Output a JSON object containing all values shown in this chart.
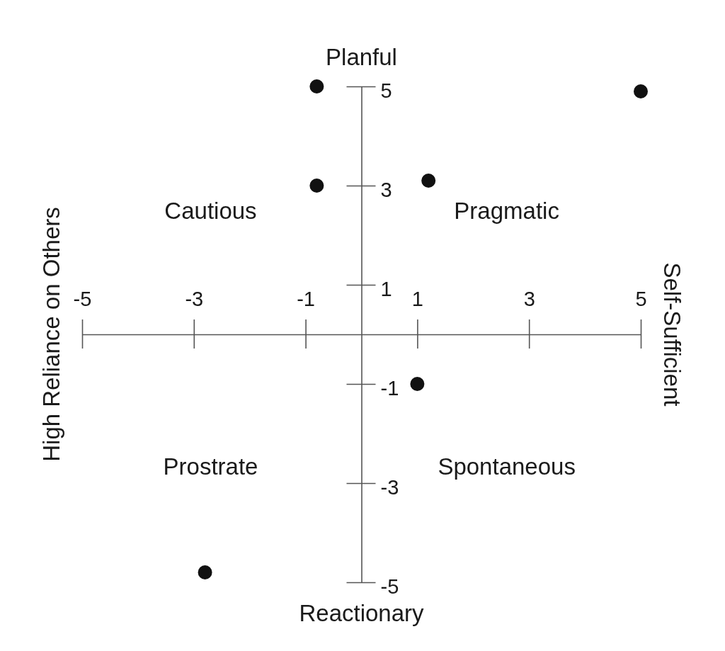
{
  "chart_data": {
    "type": "scatter",
    "xlim": [
      -5,
      5
    ],
    "ylim": [
      -5,
      5
    ],
    "xticks": [
      -5,
      -3,
      -1,
      1,
      3,
      5
    ],
    "yticks": [
      -5,
      -3,
      -1,
      1,
      3,
      5
    ],
    "marker": "circle",
    "series": [
      {
        "color": "#111111",
        "x": [
          -0.8,
          -0.8,
          1.2,
          5.0,
          1.0,
          -2.8
        ],
        "values": [
          5.0,
          3.0,
          3.1,
          4.9,
          -1.0,
          -4.8
        ]
      }
    ],
    "annotations": [
      "Planful",
      "Reactionary",
      "High Reliance on Others",
      "Self-Sufficient",
      "Cautious",
      "Pragmatic",
      "Prostrate",
      "Spontaneous"
    ]
  }
}
